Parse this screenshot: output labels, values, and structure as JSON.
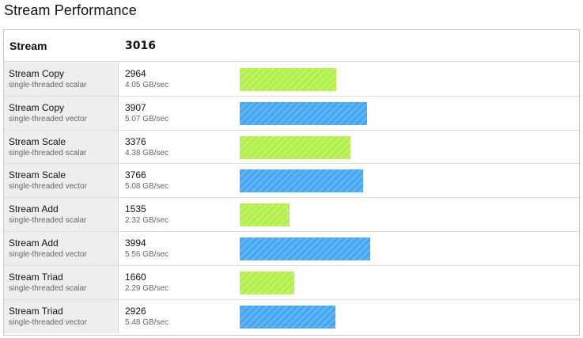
{
  "page": {
    "title": "Stream Performance"
  },
  "table": {
    "header_label": "Stream",
    "header_score": "3016",
    "bar_scale_max": 3994,
    "colors": {
      "scalar_bar": "#b4f04a",
      "vector_bar": "#46a8f4"
    },
    "rows": [
      {
        "name": "Stream Copy",
        "variant": "single-threaded scalar",
        "type": "scalar",
        "score": 2964,
        "score_text": "2964",
        "rate": "4.05 GB/sec"
      },
      {
        "name": "Stream Copy",
        "variant": "single-threaded vector",
        "type": "vector",
        "score": 3907,
        "score_text": "3907",
        "rate": "5.07 GB/sec"
      },
      {
        "name": "Stream Scale",
        "variant": "single-threaded scalar",
        "type": "scalar",
        "score": 3376,
        "score_text": "3376",
        "rate": "4.38 GB/sec"
      },
      {
        "name": "Stream Scale",
        "variant": "single-threaded vector",
        "type": "vector",
        "score": 3766,
        "score_text": "3766",
        "rate": "5.08 GB/sec"
      },
      {
        "name": "Stream Add",
        "variant": "single-threaded scalar",
        "type": "scalar",
        "score": 1535,
        "score_text": "1535",
        "rate": "2.32 GB/sec"
      },
      {
        "name": "Stream Add",
        "variant": "single-threaded vector",
        "type": "vector",
        "score": 3994,
        "score_text": "3994",
        "rate": "5.56 GB/sec"
      },
      {
        "name": "Stream Triad",
        "variant": "single-threaded scalar",
        "type": "scalar",
        "score": 1660,
        "score_text": "1660",
        "rate": "2.29 GB/sec"
      },
      {
        "name": "Stream Triad",
        "variant": "single-threaded vector",
        "type": "vector",
        "score": 2926,
        "score_text": "2926",
        "rate": "5.48 GB/sec"
      }
    ]
  }
}
